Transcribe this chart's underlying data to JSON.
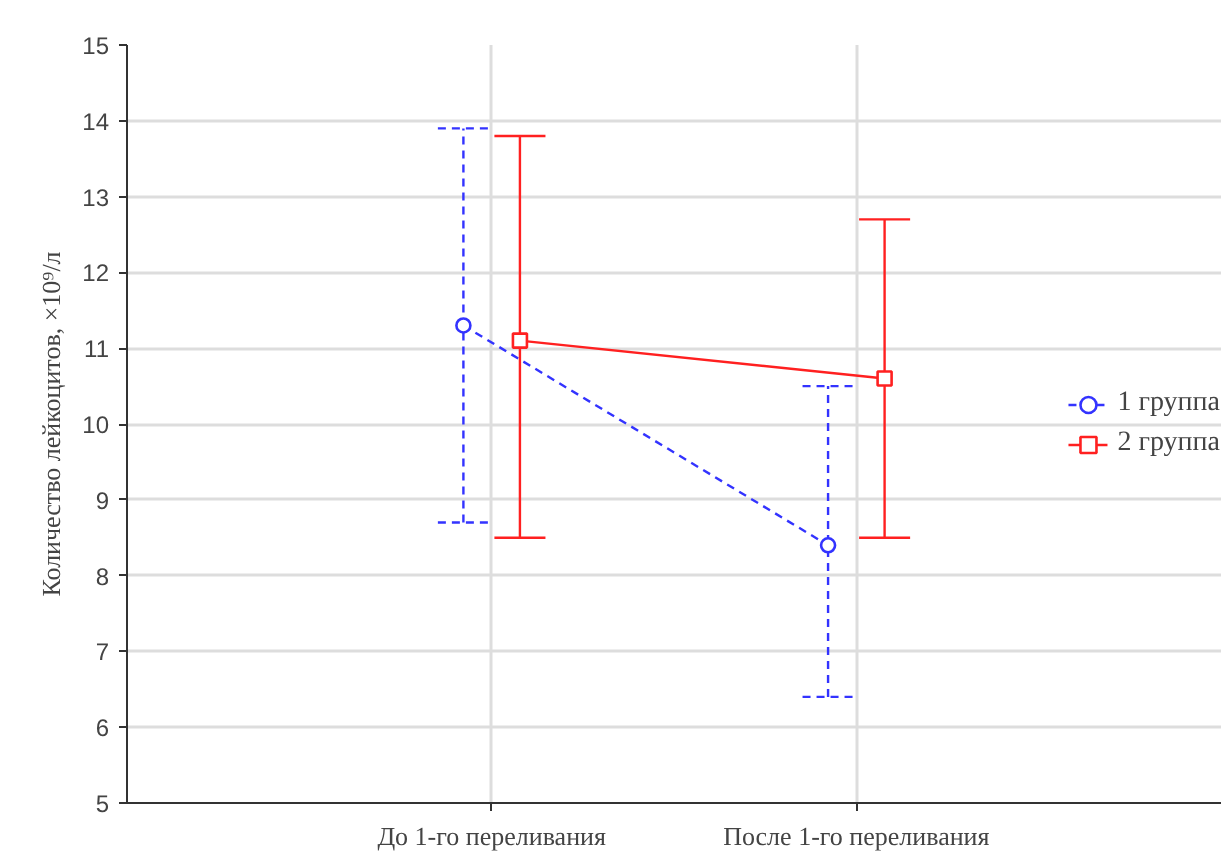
{
  "chart_data": {
    "type": "line",
    "ylabel": "Количество лейкоцитов, ×10⁹/л",
    "categories": [
      "До 1-го переливания",
      "После 1-го переливания"
    ],
    "series": [
      {
        "name": "1 группа",
        "color": "#3333ff",
        "values": [
          11.3,
          8.4
        ],
        "errors": [
          [
            8.7,
            13.9
          ],
          [
            6.4,
            10.5
          ]
        ],
        "marker": "circle",
        "line_style": "dashed"
      },
      {
        "name": "2 группа",
        "color": "#ff2020",
        "values": [
          11.1,
          10.6
        ],
        "errors": [
          [
            8.5,
            13.8
          ],
          [
            8.5,
            12.7
          ]
        ],
        "marker": "square",
        "line_style": "solid"
      }
    ],
    "ylim": [
      5,
      15
    ],
    "yticks": [
      5,
      6,
      7,
      8,
      9,
      10,
      11,
      12,
      13,
      14,
      15
    ],
    "grid": true,
    "legend": "right"
  }
}
